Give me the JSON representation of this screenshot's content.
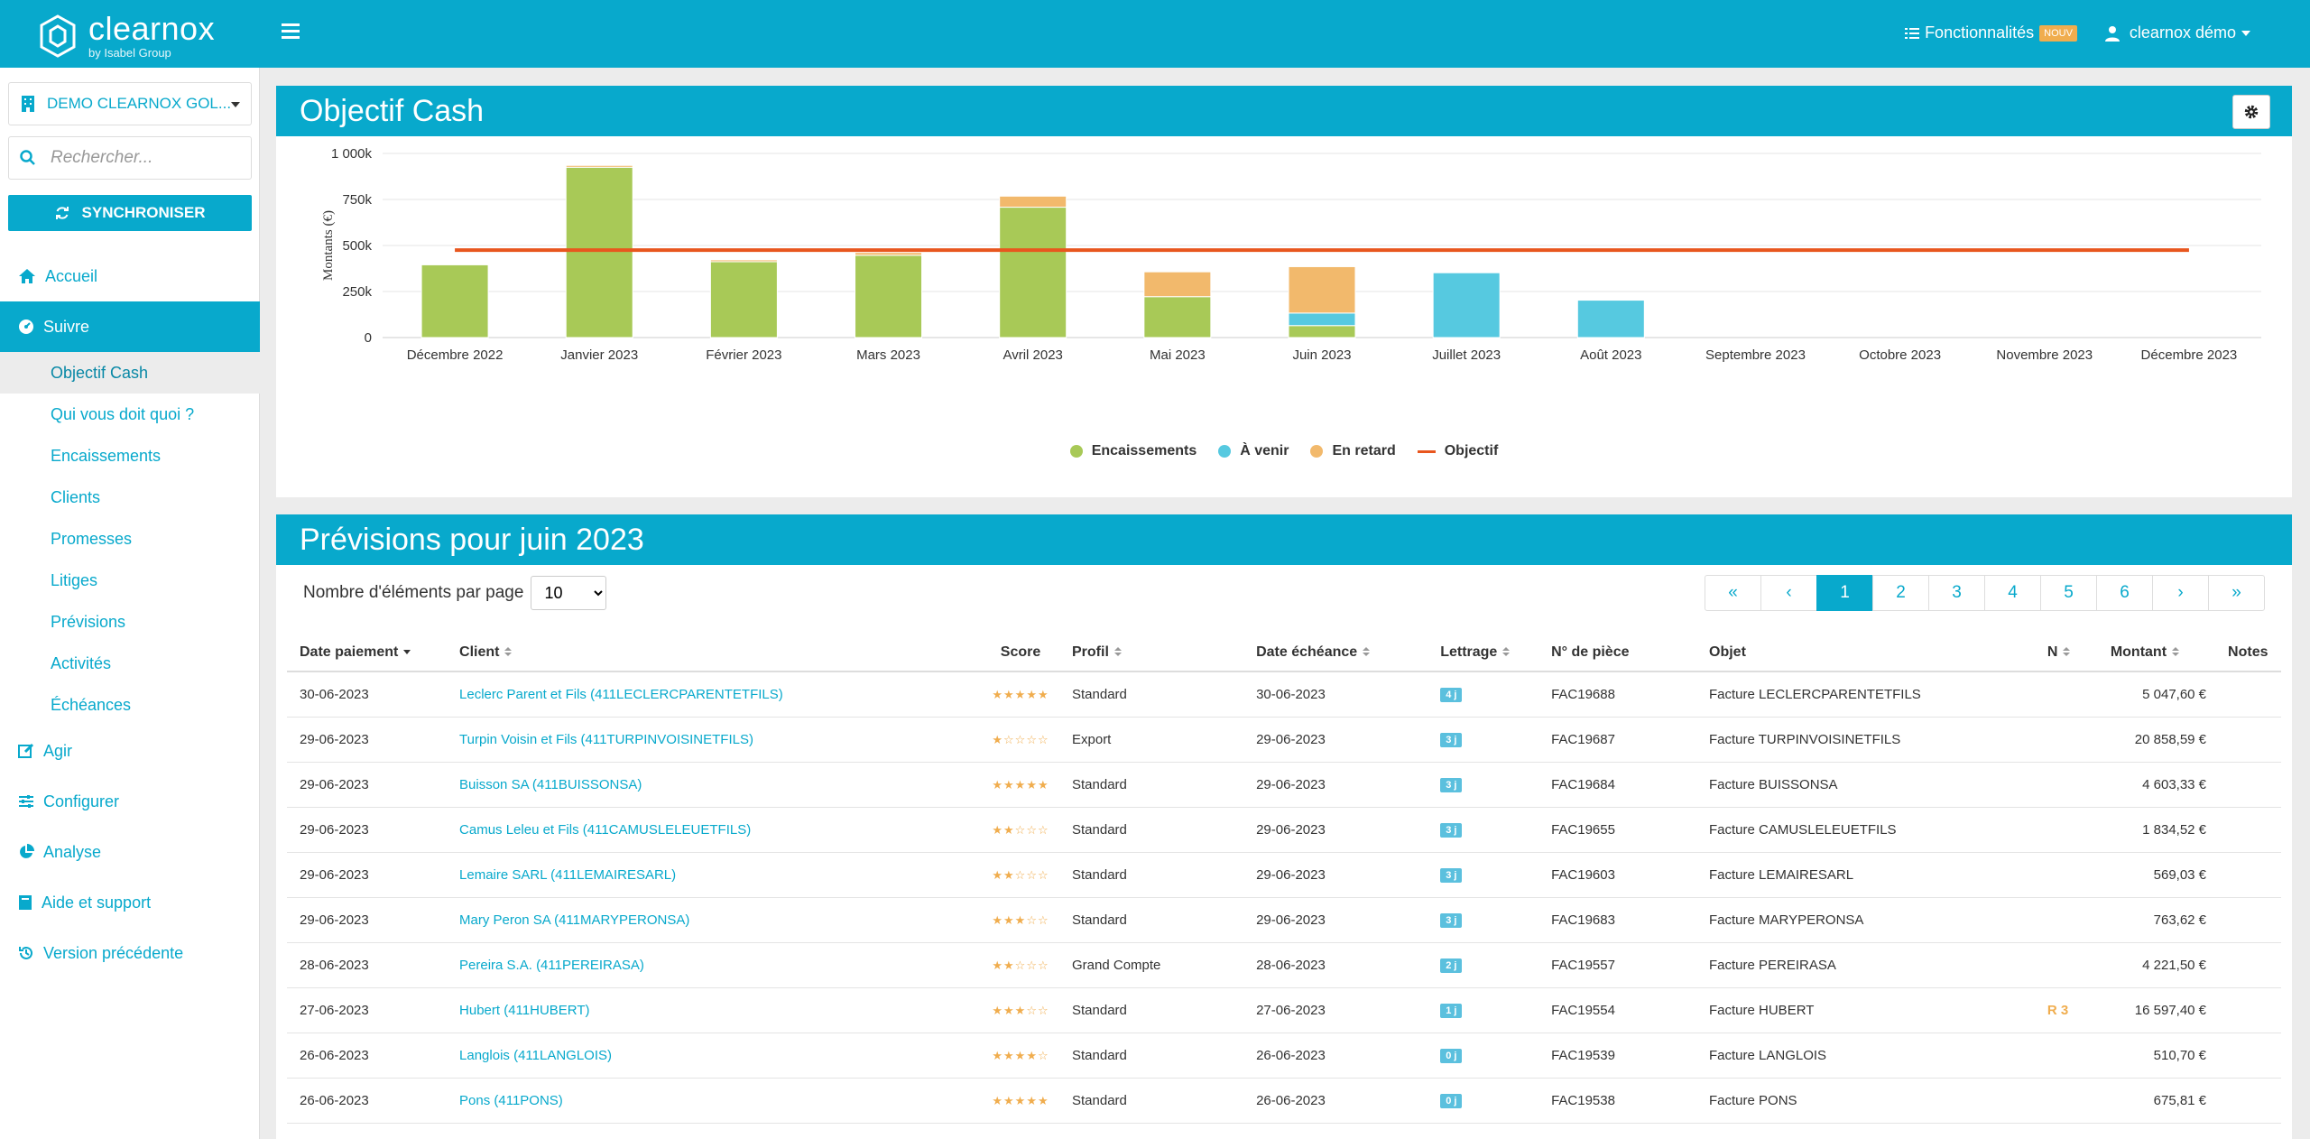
{
  "header": {
    "logo_name": "clearnox",
    "logo_sub": "by Isabel Group",
    "features_label": "Fonctionnalités",
    "features_badge": "NOUV",
    "user_label": "clearnox démo"
  },
  "sidebar": {
    "company": "DEMO CLEARNOX GOL...",
    "search_placeholder": "Rechercher...",
    "sync_label": "SYNCHRONISER",
    "nav": {
      "accueil": "Accueil",
      "suivre": "Suivre",
      "agir": "Agir",
      "configurer": "Configurer",
      "analyse": "Analyse",
      "aide": "Aide et support",
      "version": "Version précédente"
    },
    "subnav": [
      "Objectif Cash",
      "Qui vous doit quoi ?",
      "Encaissements",
      "Clients",
      "Promesses",
      "Litiges",
      "Prévisions",
      "Activités",
      "Échéances"
    ]
  },
  "panel1": {
    "title": "Objectif Cash"
  },
  "chart_data": {
    "type": "bar",
    "stacked": true,
    "categories": [
      "Décembre 2022",
      "Janvier 2023",
      "Février 2023",
      "Mars 2023",
      "Avril 2023",
      "Mai 2023",
      "Juin 2023",
      "Juillet 2023",
      "Août 2023",
      "Septembre 2023",
      "Octobre 2023",
      "Novembre 2023",
      "Décembre 2023"
    ],
    "series": [
      {
        "name": "Encaissements",
        "color": "#a8c957",
        "values": [
          395000,
          925000,
          412000,
          447000,
          708000,
          222000,
          65000,
          0,
          0,
          0,
          0,
          0,
          0
        ]
      },
      {
        "name": "À venir",
        "color": "#56c9e0",
        "values": [
          0,
          0,
          0,
          0,
          0,
          0,
          68000,
          352000,
          203000,
          0,
          0,
          0,
          0
        ]
      },
      {
        "name": "En retard",
        "color": "#f2b96c",
        "values": [
          0,
          10000,
          10000,
          15000,
          60000,
          135000,
          252000,
          0,
          0,
          0,
          0,
          0,
          0
        ]
      }
    ],
    "objective": {
      "name": "Objectif",
      "color": "#e8561e",
      "value": 475000
    },
    "ylabel": "Montants (€)",
    "yticks": [
      "0",
      "250k",
      "500k",
      "750k",
      "1 000k"
    ],
    "ylim": [
      0,
      1000000
    ],
    "legend_position": "bottom"
  },
  "panel2": {
    "title": "Prévisions pour juin 2023",
    "per_page_label": "Nombre d'éléments par page",
    "per_page_value": "10",
    "pages": [
      "«",
      "‹",
      "1",
      "2",
      "3",
      "4",
      "5",
      "6",
      "›",
      "»"
    ],
    "active_page": "1",
    "columns": [
      "Date paiement",
      "Client",
      "Score",
      "Profil",
      "Date échéance",
      "Lettrage",
      "N° de pièce",
      "Objet",
      "N",
      "Montant",
      "Notes"
    ],
    "rows": [
      {
        "date": "30-06-2023",
        "client": "Leclerc Parent et Fils (411LECLERCPARENTETFILS)",
        "stars": "★★★★★",
        "profil": "Standard",
        "echeance": "30-06-2023",
        "lettrage": "4 j",
        "piece": "FAC19688",
        "objet": "Facture LECLERCPARENTETFILS",
        "n": "",
        "montant": "5 047,60 €",
        "notes": ""
      },
      {
        "date": "29-06-2023",
        "client": "Turpin Voisin et Fils (411TURPINVOISINETFILS)",
        "stars": "★☆☆☆☆",
        "profil": "Export",
        "echeance": "29-06-2023",
        "lettrage": "3 j",
        "piece": "FAC19687",
        "objet": "Facture TURPINVOISINETFILS",
        "n": "",
        "montant": "20 858,59 €",
        "notes": ""
      },
      {
        "date": "29-06-2023",
        "client": "Buisson SA (411BUISSONSA)",
        "stars": "★★★★★",
        "profil": "Standard",
        "echeance": "29-06-2023",
        "lettrage": "3 j",
        "piece": "FAC19684",
        "objet": "Facture BUISSONSA",
        "n": "",
        "montant": "4 603,33 €",
        "notes": ""
      },
      {
        "date": "29-06-2023",
        "client": "Camus Leleu et Fils (411CAMUSLELEUETFILS)",
        "stars": "★★☆☆☆",
        "profil": "Standard",
        "echeance": "29-06-2023",
        "lettrage": "3 j",
        "piece": "FAC19655",
        "objet": "Facture CAMUSLELEUETFILS",
        "n": "",
        "montant": "1 834,52 €",
        "notes": ""
      },
      {
        "date": "29-06-2023",
        "client": "Lemaire SARL (411LEMAIRESARL)",
        "stars": "★★☆☆☆",
        "profil": "Standard",
        "echeance": "29-06-2023",
        "lettrage": "3 j",
        "piece": "FAC19603",
        "objet": "Facture LEMAIRESARL",
        "n": "",
        "montant": "569,03 €",
        "notes": ""
      },
      {
        "date": "29-06-2023",
        "client": "Mary Peron SA (411MARYPERONSA)",
        "stars": "★★★☆☆",
        "profil": "Standard",
        "echeance": "29-06-2023",
        "lettrage": "3 j",
        "piece": "FAC19683",
        "objet": "Facture MARYPERONSA",
        "n": "",
        "montant": "763,62 €",
        "notes": ""
      },
      {
        "date": "28-06-2023",
        "client": "Pereira S.A. (411PEREIRASA)",
        "stars": "★★☆☆☆",
        "profil": "Grand Compte",
        "echeance": "28-06-2023",
        "lettrage": "2 j",
        "piece": "FAC19557",
        "objet": "Facture PEREIRASA",
        "n": "",
        "montant": "4 221,50 €",
        "notes": ""
      },
      {
        "date": "27-06-2023",
        "client": "Hubert (411HUBERT)",
        "stars": "★★★☆☆",
        "profil": "Standard",
        "echeance": "27-06-2023",
        "lettrage": "1 j",
        "piece": "FAC19554",
        "objet": "Facture HUBERT",
        "n": "R 3",
        "montant": "16 597,40 €",
        "notes": ""
      },
      {
        "date": "26-06-2023",
        "client": "Langlois (411LANGLOIS)",
        "stars": "★★★★☆",
        "profil": "Standard",
        "echeance": "26-06-2023",
        "lettrage": "0 j",
        "piece": "FAC19539",
        "objet": "Facture LANGLOIS",
        "n": "",
        "montant": "510,70 €",
        "notes": ""
      },
      {
        "date": "26-06-2023",
        "client": "Pons (411PONS)",
        "stars": "★★★★★",
        "profil": "Standard",
        "echeance": "26-06-2023",
        "lettrage": "0 j",
        "piece": "FAC19538",
        "objet": "Facture PONS",
        "n": "",
        "montant": "675,81 €",
        "notes": ""
      }
    ]
  }
}
